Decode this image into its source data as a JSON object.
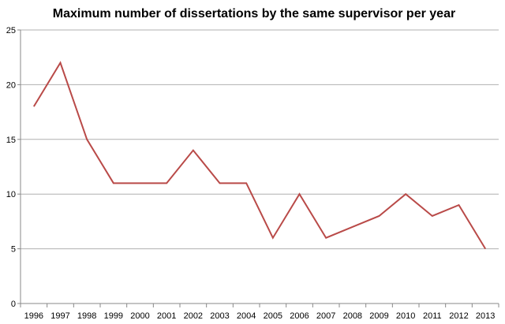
{
  "chart_data": {
    "type": "line",
    "title": "Maximum number of dissertations by the same supervisor per year",
    "xlabel": "",
    "ylabel": "",
    "categories": [
      "1996",
      "1997",
      "1998",
      "1999",
      "2000",
      "2001",
      "2002",
      "2003",
      "2004",
      "2005",
      "2006",
      "2007",
      "2008",
      "2009",
      "2010",
      "2011",
      "2012",
      "2013"
    ],
    "series": [
      {
        "values": [
          18,
          22,
          15,
          11,
          11,
          11,
          14,
          11,
          11,
          6,
          10,
          6,
          7,
          8,
          10,
          8,
          9,
          5
        ],
        "color": "#b94a48"
      }
    ],
    "ylim": [
      0,
      25
    ],
    "yticks": [
      0,
      5,
      10,
      15,
      20,
      25
    ],
    "grid": true,
    "legend": "none"
  }
}
